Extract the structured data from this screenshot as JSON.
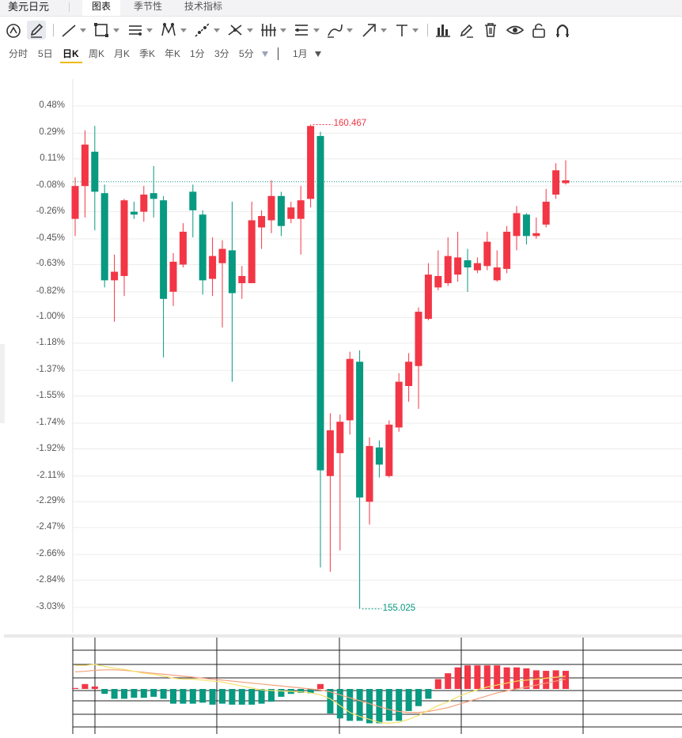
{
  "header": {
    "symbol": "美元日元",
    "tabs": [
      {
        "label": "图表",
        "active": true
      },
      {
        "label": "季节性",
        "active": false
      },
      {
        "label": "技术指标",
        "active": false
      }
    ]
  },
  "toolbar": {
    "tools": [
      "reset-view-icon",
      "pencil-icon",
      "trend-line-icon",
      "rectangle-icon",
      "parallel-lines-icon",
      "pattern-icon",
      "ray-icon",
      "fork-icon",
      "bars-icon",
      "fib-icon",
      "brush-icon",
      "arrow-icon",
      "text-icon",
      "chart-type-icon",
      "edit-icon",
      "delete-icon",
      "eye-icon",
      "lock-icon",
      "magnet-icon"
    ]
  },
  "periods": {
    "items": [
      "分时",
      "5日",
      "日K",
      "周K",
      "月K",
      "季K",
      "年K",
      "1分",
      "3分",
      "5分"
    ],
    "active": "日K",
    "range_label": "1月"
  },
  "colors": {
    "up": "#f23645",
    "down": "#089981",
    "accent": "#f0b90b"
  },
  "chart_data": {
    "type": "candlestick",
    "y_axis_labels": [
      "0.48%",
      "0.29%",
      "0.11%",
      "-0.08%",
      "-0.26%",
      "-0.45%",
      "-0.63%",
      "-0.82%",
      "-1.00%",
      "-1.18%",
      "-1.37%",
      "-1.55%",
      "-1.74%",
      "-1.92%",
      "-2.11%",
      "-2.29%",
      "-2.47%",
      "-2.66%",
      "-2.84%",
      "-3.03%"
    ],
    "y_axis_values": [
      0.48,
      0.29,
      0.11,
      -0.08,
      -0.26,
      -0.45,
      -0.63,
      -0.82,
      -1.0,
      -1.18,
      -1.37,
      -1.55,
      -1.74,
      -1.92,
      -2.11,
      -2.29,
      -2.47,
      -2.66,
      -2.84,
      -3.03
    ],
    "high_label": "160.467",
    "low_label": "155.025",
    "last_line_pct": -0.05,
    "candles": [
      {
        "o": -0.31,
        "c": -0.08,
        "h": -0.02,
        "l": -0.43
      },
      {
        "o": -0.08,
        "c": 0.21,
        "h": 0.31,
        "l": -0.3
      },
      {
        "o": 0.16,
        "c": -0.12,
        "h": 0.34,
        "l": -0.39
      },
      {
        "o": -0.13,
        "c": -0.74,
        "h": -0.07,
        "l": -0.79
      },
      {
        "o": -0.74,
        "c": -0.68,
        "h": -0.56,
        "l": -1.03
      },
      {
        "o": -0.71,
        "c": -0.18,
        "h": -0.17,
        "l": -0.85
      },
      {
        "o": -0.26,
        "c": -0.28,
        "h": -0.19,
        "l": -0.31
      },
      {
        "o": -0.26,
        "c": -0.14,
        "h": -0.08,
        "l": -0.33
      },
      {
        "o": -0.13,
        "c": -0.17,
        "h": 0.06,
        "l": -0.3
      },
      {
        "o": -0.18,
        "c": -0.87,
        "h": -0.15,
        "l": -1.28
      },
      {
        "o": -0.82,
        "c": -0.61,
        "h": -0.55,
        "l": -0.92
      },
      {
        "o": -0.63,
        "c": -0.4,
        "h": -0.34,
        "l": -0.65
      },
      {
        "o": -0.12,
        "c": -0.25,
        "h": -0.07,
        "l": -0.44
      },
      {
        "o": -0.28,
        "c": -0.74,
        "h": -0.25,
        "l": -0.84
      },
      {
        "o": -0.73,
        "c": -0.57,
        "h": -0.44,
        "l": -0.85
      },
      {
        "o": -0.62,
        "c": -0.52,
        "h": -0.46,
        "l": -1.07
      },
      {
        "o": -0.53,
        "c": -0.83,
        "h": -0.19,
        "l": -1.45
      },
      {
        "o": -0.76,
        "c": -0.71,
        "h": -0.64,
        "l": -0.87
      },
      {
        "o": -0.76,
        "c": -0.32,
        "h": -0.19,
        "l": -0.76
      },
      {
        "o": -0.37,
        "c": -0.29,
        "h": -0.25,
        "l": -0.52
      },
      {
        "o": -0.32,
        "c": -0.15,
        "h": -0.04,
        "l": -0.41
      },
      {
        "o": -0.15,
        "c": -0.36,
        "h": -0.12,
        "l": -0.43
      },
      {
        "o": -0.31,
        "c": -0.23,
        "h": -0.19,
        "l": -0.34
      },
      {
        "o": -0.31,
        "c": -0.18,
        "h": -0.08,
        "l": -0.56
      },
      {
        "o": -0.17,
        "c": 0.34,
        "h": 0.35,
        "l": -0.23
      },
      {
        "o": 0.27,
        "c": -2.07,
        "h": 0.3,
        "l": -2.75
      },
      {
        "o": -2.11,
        "c": -1.79,
        "h": -1.67,
        "l": -2.78
      },
      {
        "o": -1.95,
        "c": -1.73,
        "h": -1.68,
        "l": -2.63
      },
      {
        "o": -1.72,
        "c": -1.29,
        "h": -1.24,
        "l": -1.82
      },
      {
        "o": -1.31,
        "c": -2.26,
        "h": -1.23,
        "l": -3.04
      },
      {
        "o": -2.29,
        "c": -1.9,
        "h": -1.84,
        "l": -2.45
      },
      {
        "o": -1.91,
        "c": -2.03,
        "h": -1.86,
        "l": -2.12
      },
      {
        "o": -2.11,
        "c": -1.75,
        "h": -1.72,
        "l": -2.12
      },
      {
        "o": -1.77,
        "c": -1.45,
        "h": -1.39,
        "l": -1.8
      },
      {
        "o": -1.48,
        "c": -1.31,
        "h": -1.25,
        "l": -1.59
      },
      {
        "o": -1.34,
        "c": -0.96,
        "h": -0.93,
        "l": -1.64
      },
      {
        "o": -1.01,
        "c": -0.7,
        "h": -0.62,
        "l": -1.02
      },
      {
        "o": -0.79,
        "c": -0.71,
        "h": -0.53,
        "l": -0.81
      },
      {
        "o": -0.76,
        "c": -0.57,
        "h": -0.44,
        "l": -0.78
      },
      {
        "o": -0.7,
        "c": -0.58,
        "h": -0.4,
        "l": -0.75
      },
      {
        "o": -0.6,
        "c": -0.65,
        "h": -0.52,
        "l": -0.82
      },
      {
        "o": -0.67,
        "c": -0.62,
        "h": -0.58,
        "l": -0.69
      },
      {
        "o": -0.64,
        "c": -0.47,
        "h": -0.4,
        "l": -0.67
      },
      {
        "o": -0.74,
        "c": -0.65,
        "h": -0.53,
        "l": -0.75
      },
      {
        "o": -0.66,
        "c": -0.4,
        "h": -0.36,
        "l": -0.69
      },
      {
        "o": -0.43,
        "c": -0.27,
        "h": -0.22,
        "l": -0.53
      },
      {
        "o": -0.28,
        "c": -0.43,
        "h": -0.27,
        "l": -0.49
      },
      {
        "o": -0.43,
        "c": -0.41,
        "h": -0.3,
        "l": -0.45
      },
      {
        "o": -0.35,
        "c": -0.19,
        "h": -0.1,
        "l": -0.37
      },
      {
        "o": -0.14,
        "c": 0.03,
        "h": 0.08,
        "l": -0.17
      },
      {
        "o": -0.06,
        "c": -0.04,
        "h": 0.1,
        "l": -0.07
      }
    ],
    "macd_hist": [
      0.2,
      1.0,
      0.5,
      -1.0,
      -2.0,
      -2.0,
      -1.8,
      -1.8,
      -1.6,
      -2.0,
      -3.0,
      -3.0,
      -3.0,
      -2.8,
      -3.2,
      -3.0,
      -3.2,
      -3.2,
      -3.2,
      -3.0,
      -2.6,
      -1.6,
      -1.0,
      -0.8,
      -0.9,
      1.0,
      -5.0,
      -6.0,
      -6.5,
      -6.5,
      -7.0,
      -7.0,
      -6.5,
      -6.5,
      -4.5,
      -3.5,
      -2.0,
      2.0,
      3.2,
      4.4,
      4.8,
      4.8,
      4.8,
      4.8,
      4.4,
      4.4,
      4.2,
      3.8,
      3.7,
      3.8,
      3.7
    ],
    "dif": [
      4.8,
      4.8,
      5.0,
      4.6,
      4.2,
      4.0,
      3.6,
      3.2,
      3.0,
      2.6,
      2.2,
      2.0,
      2.0,
      1.8,
      1.6,
      1.4,
      1.0,
      0.6,
      0.2,
      -0.2,
      -0.3,
      -0.4,
      -0.5,
      -0.6,
      -0.8,
      -1.2,
      -2.0,
      -3.4,
      -4.8,
      -5.6,
      -6.2,
      -6.8,
      -7.0,
      -6.8,
      -6.2,
      -5.4,
      -4.4,
      -3.4,
      -2.6,
      -1.6,
      -0.8,
      -0.2,
      0.4,
      0.8,
      1.2,
      1.6,
      1.8,
      2.0,
      2.2,
      2.4,
      2.6
    ],
    "dea": [
      3.5,
      3.6,
      3.8,
      3.9,
      3.9,
      3.8,
      3.6,
      3.4,
      3.2,
      3.0,
      2.8,
      2.6,
      2.4,
      2.2,
      2.0,
      1.8,
      1.6,
      1.4,
      1.2,
      1.0,
      0.8,
      0.6,
      0.4,
      0.2,
      0.0,
      -0.2,
      -0.6,
      -1.2,
      -1.8,
      -2.4,
      -3.0,
      -3.6,
      -4.2,
      -4.6,
      -4.8,
      -4.8,
      -4.6,
      -4.2,
      -3.8,
      -3.2,
      -2.6,
      -2.0,
      -1.4,
      -0.8,
      -0.4,
      0.0,
      0.4,
      0.8,
      1.2,
      1.6,
      2.0
    ]
  }
}
